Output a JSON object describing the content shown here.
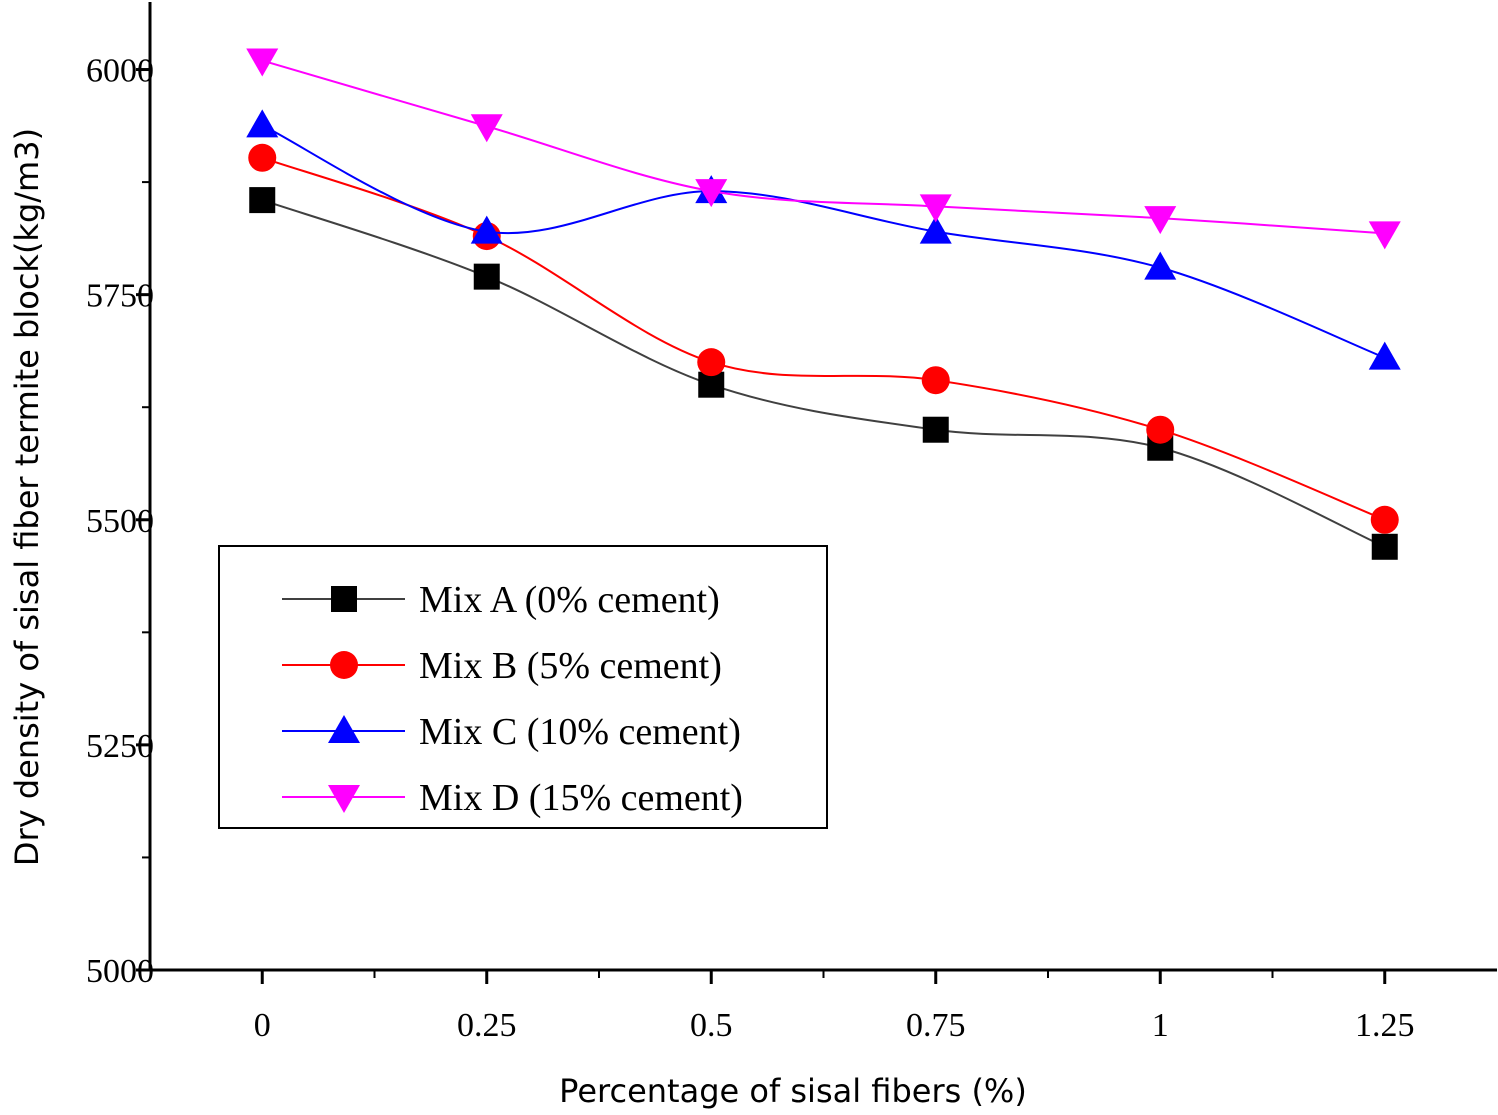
{
  "chart_data": {
    "type": "line",
    "title": "",
    "xlabel": "Percentage of sisal fibers (%)",
    "ylabel": "Dry density of sisal fiber termite block(kg/m3)",
    "x": [
      0,
      0.25,
      0.5,
      0.75,
      1,
      1.25
    ],
    "x_tick_labels": [
      "0",
      "0.25",
      "0.5",
      "0.75",
      "1",
      "1.25"
    ],
    "xlim": [
      -0.125,
      1.375
    ],
    "y_ticks": [
      5000,
      5250,
      5500,
      5750,
      6000
    ],
    "y_tick_labels": [
      "5000",
      "5250",
      "5500",
      "5750",
      "6000"
    ],
    "ylim": [
      5000,
      6075
    ],
    "grid": false,
    "legend_position": "lower-left",
    "series": [
      {
        "name": "Mix A (0% cement)",
        "marker": "square",
        "color": "#000000",
        "line_color": "#404040",
        "values": [
          5855,
          5770,
          5650,
          5600,
          5580,
          5470
        ]
      },
      {
        "name": "Mix B (5% cement)",
        "marker": "circle",
        "color": "#ff0000",
        "line_color": "#ff0000",
        "values": [
          5902,
          5815,
          5675,
          5655,
          5600,
          5500
        ]
      },
      {
        "name": "Mix C (10% cement)",
        "marker": "triangle-up",
        "color": "#0000ff",
        "line_color": "#0000ff",
        "values": [
          5938,
          5820,
          5865,
          5820,
          5780,
          5680
        ]
      },
      {
        "name": "Mix D (15% cement)",
        "marker": "triangle-down",
        "color": "#ff00ff",
        "line_color": "#ff00ff",
        "values": [
          6010,
          5937,
          5865,
          5848,
          5835,
          5818
        ]
      }
    ]
  }
}
